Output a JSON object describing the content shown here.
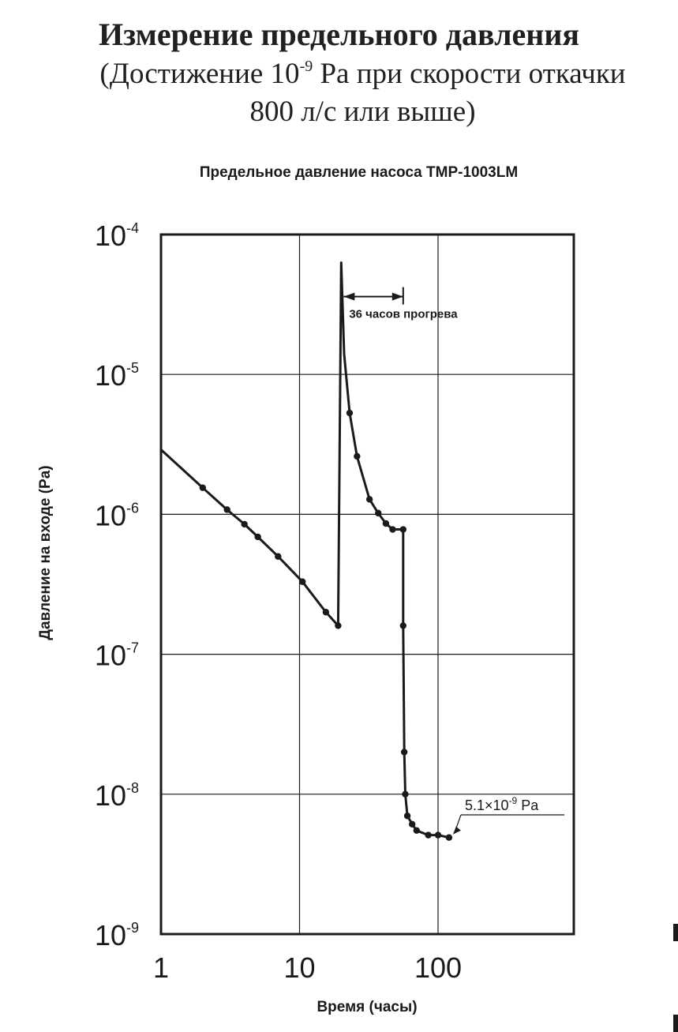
{
  "header": {
    "title": "Измерение предельного давления",
    "subtitle_line1_pre": "(Достижение 10",
    "subtitle_line1_sup": "-9",
    "subtitle_line1_post": " Pa при скорости откачки",
    "subtitle_line2": "800 л/с или выше)"
  },
  "chart_data": {
    "type": "line",
    "title": "Предельное давление насоса TMP-1003LM",
    "xlabel": "Время (часы)",
    "ylabel": "Давление на входе (Pa)",
    "x_scale": "log",
    "y_scale": "log",
    "xlim": [
      1,
      1000
    ],
    "ylim": [
      1e-09,
      0.0001
    ],
    "grid": true,
    "x_ticks": [
      {
        "value": 1,
        "label": "1"
      },
      {
        "value": 10,
        "label": "10"
      },
      {
        "value": 100,
        "label": "100"
      }
    ],
    "y_ticks": [
      {
        "value": 0.0001,
        "base": "10",
        "exp": "-4"
      },
      {
        "value": 1e-05,
        "base": "10",
        "exp": "-5"
      },
      {
        "value": 1e-06,
        "base": "10",
        "exp": "-6"
      },
      {
        "value": 1e-07,
        "base": "10",
        "exp": "-7"
      },
      {
        "value": 1e-08,
        "base": "10",
        "exp": "-8"
      },
      {
        "value": 1e-09,
        "base": "10",
        "exp": "-9"
      }
    ],
    "series": [
      {
        "line": [
          [
            1,
            2.9e-06
          ],
          [
            2,
            1.55e-06
          ],
          [
            3,
            1.08e-06
          ],
          [
            4,
            8.5e-07
          ],
          [
            5,
            6.9e-07
          ],
          [
            7,
            5e-07
          ],
          [
            10.5,
            3.3e-07
          ],
          [
            15.5,
            2e-07
          ],
          [
            19,
            1.6e-07
          ],
          [
            20,
            6.3e-05
          ],
          [
            21,
            1.4e-05
          ],
          [
            23,
            5.3e-06
          ],
          [
            26,
            2.6e-06
          ],
          [
            32,
            1.28e-06
          ],
          [
            37,
            1.02e-06
          ],
          [
            42,
            8.6e-07
          ],
          [
            47,
            7.8e-07
          ],
          [
            56,
            7.8e-07
          ],
          [
            56,
            1.6e-07
          ],
          [
            57,
            2e-08
          ],
          [
            58,
            1e-08
          ],
          [
            60,
            7e-09
          ],
          [
            65,
            6.1e-09
          ],
          [
            70,
            5.5e-09
          ],
          [
            85,
            5.1e-09
          ],
          [
            100,
            5.1e-09
          ],
          [
            120,
            4.9e-09
          ]
        ],
        "markers": [
          [
            2,
            1.55e-06
          ],
          [
            3,
            1.08e-06
          ],
          [
            4,
            8.5e-07
          ],
          [
            5,
            6.9e-07
          ],
          [
            7,
            5e-07
          ],
          [
            10.5,
            3.3e-07
          ],
          [
            15.5,
            2e-07
          ],
          [
            19,
            1.6e-07
          ],
          [
            23,
            5.3e-06
          ],
          [
            26,
            2.6e-06
          ],
          [
            32,
            1.28e-06
          ],
          [
            37,
            1.02e-06
          ],
          [
            42,
            8.6e-07
          ],
          [
            47,
            7.8e-07
          ],
          [
            56,
            7.8e-07
          ],
          [
            56,
            1.6e-07
          ],
          [
            57,
            2e-08
          ],
          [
            58,
            1e-08
          ],
          [
            60,
            7e-09
          ],
          [
            65,
            6.1e-09
          ],
          [
            70,
            5.5e-09
          ],
          [
            85,
            5.1e-09
          ],
          [
            100,
            5.1e-09
          ],
          [
            120,
            4.9e-09
          ]
        ]
      }
    ],
    "annotations": [
      {
        "text": "36 часов прогрева",
        "x_from": 20,
        "x_to": 56,
        "y": 3.6e-05
      },
      {
        "text": "5.1×10",
        "sup": "-9",
        "post": " Pa",
        "point": [
          120,
          4.9e-09
        ]
      }
    ]
  },
  "colors": {
    "line": "#1a1a1a",
    "grid": "#1a1a1a",
    "background": "#ffffff"
  }
}
